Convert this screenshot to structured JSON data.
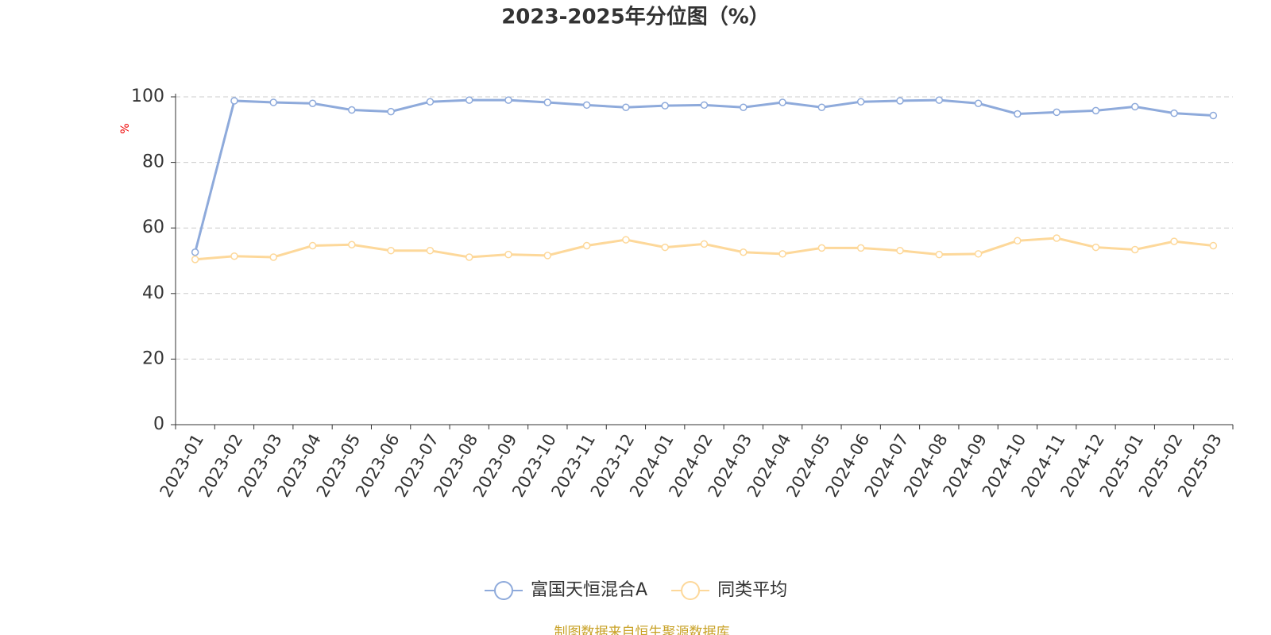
{
  "chart_data": {
    "type": "line",
    "title": "2023-2025年分位图（%）",
    "y_label": "%",
    "categories": [
      "2023-01",
      "2023-02",
      "2023-03",
      "2023-04",
      "2023-05",
      "2023-06",
      "2023-07",
      "2023-08",
      "2023-09",
      "2023-10",
      "2023-11",
      "2023-12",
      "2024-01",
      "2024-02",
      "2024-03",
      "2024-04",
      "2024-05",
      "2024-06",
      "2024-07",
      "2024-08",
      "2024-09",
      "2024-10",
      "2024-11",
      "2024-12",
      "2025-01",
      "2025-02",
      "2025-03"
    ],
    "series": [
      {
        "name": "富国天恒混合A",
        "color": "#8eaadb",
        "values": [
          52.6,
          98.8,
          98.3,
          98.0,
          96.0,
          95.5,
          98.5,
          99.0,
          99.0,
          98.3,
          97.5,
          96.8,
          97.3,
          97.5,
          96.8,
          98.3,
          96.8,
          98.5,
          98.8,
          99.0,
          98.0,
          94.8,
          95.3,
          95.8,
          97.0,
          95.0,
          94.3
        ]
      },
      {
        "name": "同类平均",
        "color": "#fdd89a",
        "values": [
          50.4,
          51.4,
          51.1,
          54.6,
          54.9,
          53.1,
          53.1,
          51.1,
          51.9,
          51.6,
          54.6,
          56.4,
          54.1,
          55.1,
          52.6,
          52.1,
          53.9,
          53.9,
          53.1,
          51.9,
          52.1,
          56.1,
          56.9,
          54.1,
          53.4,
          55.9,
          54.6
        ]
      }
    ],
    "ylim": [
      0,
      100
    ],
    "yticks": [
      0,
      20,
      40,
      60,
      80,
      100
    ],
    "grid": true,
    "source": "制图数据来自恒生聚源数据库"
  }
}
